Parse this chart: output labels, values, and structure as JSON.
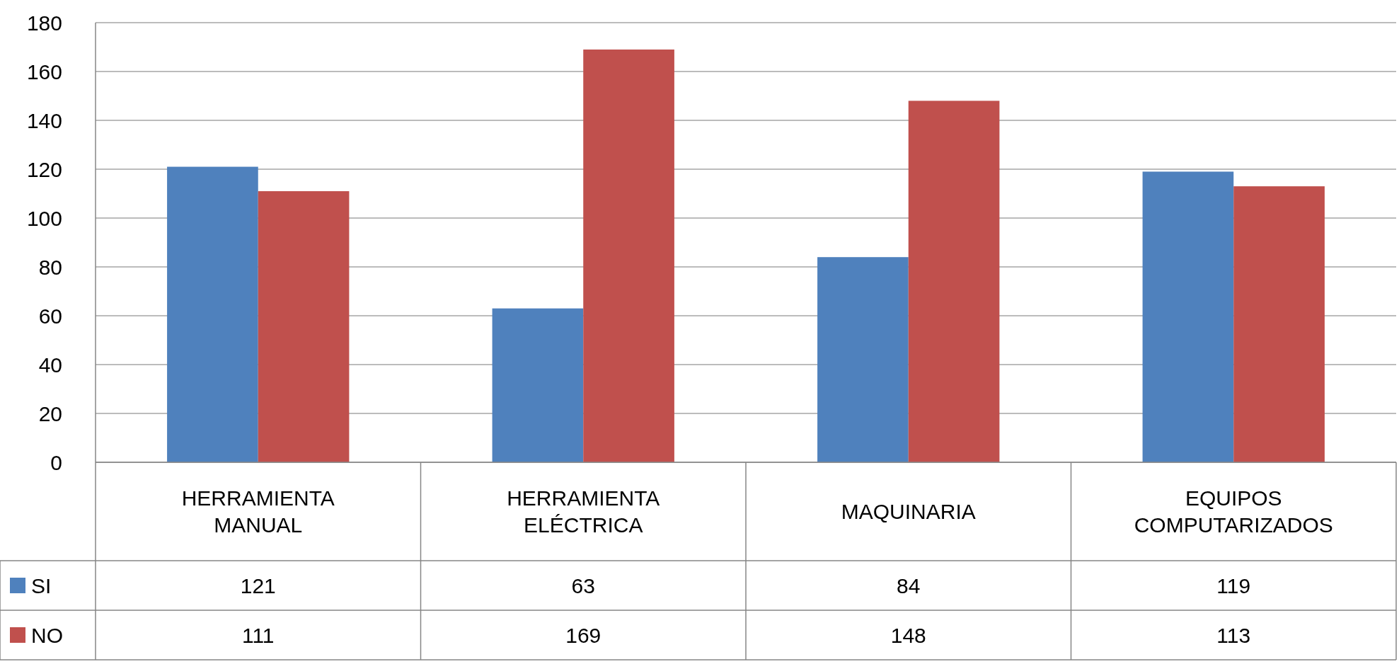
{
  "chart_data": {
    "type": "bar",
    "categories": [
      "HERRAMIENTA MANUAL",
      "HERRAMIENTA ELÉCTRICA",
      "MAQUINARIA",
      "EQUIPOS COMPUTARIZADOS"
    ],
    "series": [
      {
        "name": "SI",
        "color": "#4f81bd",
        "values": [
          121,
          63,
          84,
          119
        ]
      },
      {
        "name": "NO",
        "color": "#c0504d",
        "values": [
          111,
          169,
          148,
          113
        ]
      }
    ],
    "ylim": [
      0,
      180
    ],
    "yticks": [
      0,
      20,
      40,
      60,
      80,
      100,
      120,
      140,
      160,
      180
    ],
    "grid": "y",
    "legend": "bottom",
    "data_labels": true
  }
}
